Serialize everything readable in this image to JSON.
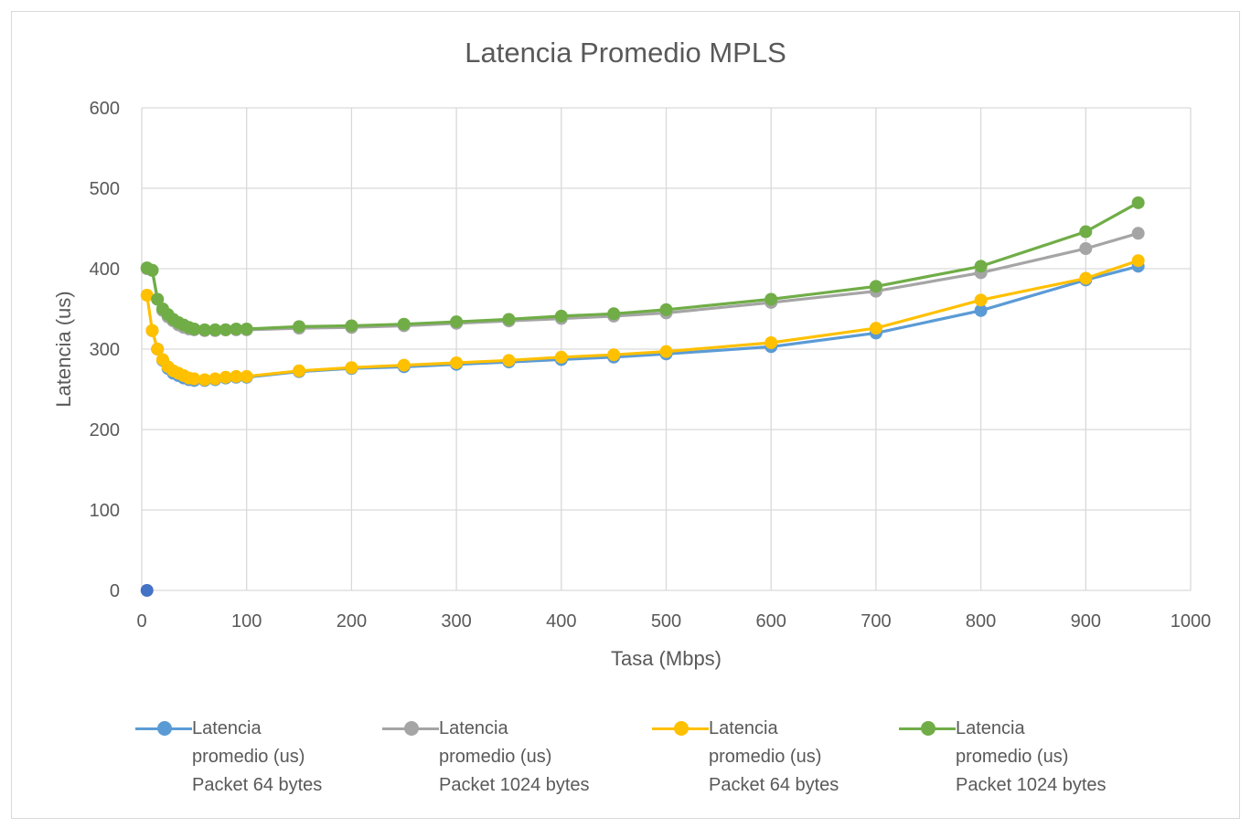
{
  "chart_data": {
    "type": "line",
    "title": "Latencia Promedio MPLS",
    "xlabel": "Tasa (Mbps)",
    "ylabel": "Latencia (us)",
    "xlim": [
      0,
      1000
    ],
    "ylim": [
      0,
      600
    ],
    "x_ticks": [
      "0",
      "100",
      "200",
      "300",
      "400",
      "500",
      "600",
      "700",
      "800",
      "900",
      "1000"
    ],
    "y_ticks": [
      "0",
      "100",
      "200",
      "300",
      "400",
      "500",
      "600"
    ],
    "grid": true,
    "legend_position": "bottom",
    "series": [
      {
        "name": "Latencia promedio (us) Packet 64 bytes",
        "color": "#5b9bd5",
        "points": [
          [
            5,
            0
          ],
          [
            10,
            323
          ],
          [
            15,
            300
          ],
          [
            20,
            286
          ],
          [
            25,
            276
          ],
          [
            30,
            270
          ],
          [
            35,
            267
          ],
          [
            40,
            264
          ],
          [
            45,
            262
          ],
          [
            50,
            261
          ],
          [
            60,
            261
          ],
          [
            70,
            262
          ],
          [
            80,
            264
          ],
          [
            90,
            265
          ],
          [
            100,
            265
          ],
          [
            150,
            272
          ],
          [
            200,
            276
          ],
          [
            250,
            278
          ],
          [
            300,
            281
          ],
          [
            350,
            284
          ],
          [
            400,
            287
          ],
          [
            450,
            290
          ],
          [
            500,
            294
          ],
          [
            600,
            303
          ],
          [
            700,
            320
          ],
          [
            800,
            348
          ],
          [
            900,
            386
          ],
          [
            950,
            403
          ]
        ]
      },
      {
        "name": "Latencia promedio (us) Packet 1024 bytes",
        "color": "#a5a5a5",
        "points": [
          [
            5,
            400
          ],
          [
            10,
            398
          ],
          [
            15,
            362
          ],
          [
            20,
            348
          ],
          [
            25,
            340
          ],
          [
            30,
            335
          ],
          [
            35,
            330
          ],
          [
            40,
            327
          ],
          [
            45,
            325
          ],
          [
            50,
            324
          ],
          [
            60,
            323
          ],
          [
            70,
            323
          ],
          [
            80,
            324
          ],
          [
            90,
            324
          ],
          [
            100,
            324
          ],
          [
            150,
            326
          ],
          [
            200,
            327
          ],
          [
            250,
            329
          ],
          [
            300,
            332
          ],
          [
            350,
            335
          ],
          [
            400,
            338
          ],
          [
            450,
            341
          ],
          [
            500,
            345
          ],
          [
            600,
            358
          ],
          [
            700,
            372
          ],
          [
            800,
            395
          ],
          [
            900,
            425
          ],
          [
            950,
            444
          ]
        ]
      },
      {
        "name": "Latencia promedio (us) Packet 64 bytes",
        "color": "#ffc000",
        "points": [
          [
            5,
            367
          ],
          [
            10,
            323
          ],
          [
            15,
            300
          ],
          [
            20,
            287
          ],
          [
            25,
            278
          ],
          [
            30,
            273
          ],
          [
            35,
            270
          ],
          [
            40,
            267
          ],
          [
            45,
            264
          ],
          [
            50,
            263
          ],
          [
            60,
            262
          ],
          [
            70,
            263
          ],
          [
            80,
            265
          ],
          [
            90,
            266
          ],
          [
            100,
            266
          ],
          [
            150,
            273
          ],
          [
            200,
            277
          ],
          [
            250,
            280
          ],
          [
            300,
            283
          ],
          [
            350,
            286
          ],
          [
            400,
            290
          ],
          [
            450,
            293
          ],
          [
            500,
            297
          ],
          [
            600,
            308
          ],
          [
            700,
            326
          ],
          [
            800,
            361
          ],
          [
            900,
            388
          ],
          [
            950,
            410
          ]
        ]
      },
      {
        "name": "Latencia promedio (us) Packet 1024 bytes",
        "color": "#70ad47",
        "points": [
          [
            5,
            401
          ],
          [
            10,
            398
          ],
          [
            15,
            362
          ],
          [
            20,
            350
          ],
          [
            25,
            343
          ],
          [
            30,
            337
          ],
          [
            35,
            333
          ],
          [
            40,
            330
          ],
          [
            45,
            327
          ],
          [
            50,
            325
          ],
          [
            60,
            324
          ],
          [
            70,
            324
          ],
          [
            80,
            324
          ],
          [
            90,
            325
          ],
          [
            100,
            325
          ],
          [
            150,
            328
          ],
          [
            200,
            329
          ],
          [
            250,
            331
          ],
          [
            300,
            334
          ],
          [
            350,
            337
          ],
          [
            400,
            341
          ],
          [
            450,
            344
          ],
          [
            500,
            349
          ],
          [
            600,
            362
          ],
          [
            700,
            378
          ],
          [
            800,
            403
          ],
          [
            900,
            446
          ],
          [
            950,
            482
          ]
        ]
      }
    ]
  },
  "legend": [
    {
      "label": "Latencia\npromedio (us)\nPacket 64 bytes",
      "color": "#5b9bd5"
    },
    {
      "label": "Latencia\npromedio (us)\nPacket 1024 bytes",
      "color": "#a5a5a5"
    },
    {
      "label": "Latencia\npromedio (us)\nPacket 64 bytes",
      "color": "#ffc000"
    },
    {
      "label": "Latencia\npromedio (us)\nPacket 1024 bytes",
      "color": "#70ad47"
    }
  ]
}
